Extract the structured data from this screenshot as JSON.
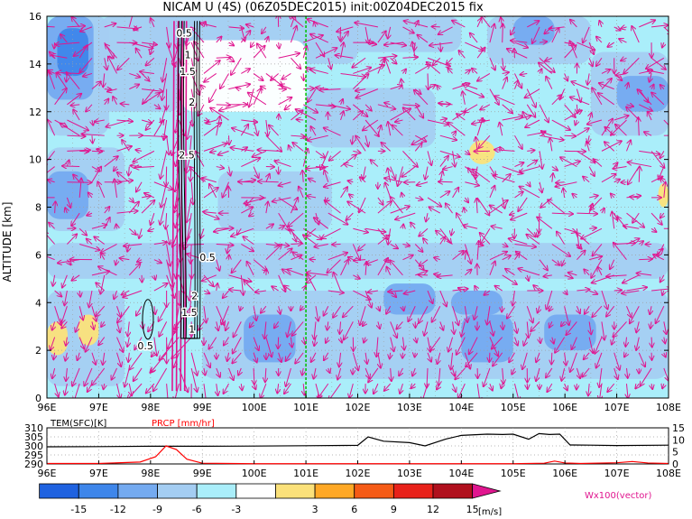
{
  "chart_data": [
    {
      "type": "heatmap",
      "title": "NICAM  U  (4S)  (06Z05DEC2015)  init:00Z04DEC2015  fix",
      "ylabel": "ALTITUDE  [km]",
      "xlabel": "",
      "x_ticks": [
        "96E",
        "97E",
        "98E",
        "99E",
        "100E",
        "101E",
        "102E",
        "103E",
        "104E",
        "105E",
        "106E",
        "107E",
        "108E"
      ],
      "x_range": [
        96,
        108
      ],
      "y_ticks": [
        0,
        2,
        4,
        6,
        8,
        10,
        12,
        14,
        16
      ],
      "y_range": [
        0,
        16
      ],
      "grid": true,
      "marker_line_lon": 101,
      "contour_labels": [
        {
          "text": "0.5",
          "lon": 98.65,
          "alt": 15.3
        },
        {
          "text": "1",
          "lon": 98.72,
          "alt": 14.4
        },
        {
          "text": "1.5",
          "lon": 98.72,
          "alt": 13.7
        },
        {
          "text": "2",
          "lon": 98.8,
          "alt": 12.4
        },
        {
          "text": "2.5",
          "lon": 98.7,
          "alt": 10.2
        },
        {
          "text": "0.5",
          "lon": 99.1,
          "alt": 5.9
        },
        {
          "text": "2",
          "lon": 98.85,
          "alt": 4.3
        },
        {
          "text": "1.5",
          "lon": 98.75,
          "alt": 3.6
        },
        {
          "text": "1",
          "lon": 98.8,
          "alt": 2.9
        },
        {
          "text": "0.5",
          "lon": 97.9,
          "alt": 2.2
        }
      ],
      "shade_regions": [
        {
          "level": -3,
          "lon": [
            96.0,
            97.2
          ],
          "alt": [
            11.0,
            16.0
          ]
        },
        {
          "level": -6,
          "lon": [
            96.0,
            96.9
          ],
          "alt": [
            12.5,
            16.0
          ]
        },
        {
          "level": -9,
          "lon": [
            96.2,
            96.8
          ],
          "alt": [
            13.5,
            15.5
          ]
        },
        {
          "level": -3,
          "lon": [
            96.0,
            97.5
          ],
          "alt": [
            7.0,
            10.5
          ]
        },
        {
          "level": -6,
          "lon": [
            96.0,
            96.8
          ],
          "alt": [
            7.5,
            9.5
          ]
        },
        {
          "level": -3,
          "lon": [
            97.0,
            98.6
          ],
          "alt": [
            12.0,
            16.0
          ]
        },
        {
          "level": -3,
          "lon": [
            98.0,
            102.0
          ],
          "alt": [
            14.0,
            16.0
          ]
        },
        {
          "level": 3,
          "lon": [
            98.6,
            101.0
          ],
          "alt": [
            12.0,
            15.0
          ]
        },
        {
          "level": -3,
          "lon": [
            101.0,
            104.0
          ],
          "alt": [
            14.5,
            16.0
          ]
        },
        {
          "level": -3,
          "lon": [
            104.5,
            106.5
          ],
          "alt": [
            14.0,
            16.0
          ]
        },
        {
          "level": -6,
          "lon": [
            105.0,
            105.8
          ],
          "alt": [
            14.8,
            16.0
          ]
        },
        {
          "level": -3,
          "lon": [
            106.5,
            108.0
          ],
          "alt": [
            11.0,
            14.5
          ]
        },
        {
          "level": -6,
          "lon": [
            107.0,
            108.0
          ],
          "alt": [
            12.0,
            13.5
          ]
        },
        {
          "level": -3,
          "lon": [
            99.3,
            101.5
          ],
          "alt": [
            7.0,
            9.5
          ]
        },
        {
          "level": -3,
          "lon": [
            101.0,
            103.5
          ],
          "alt": [
            10.5,
            13.0
          ]
        },
        {
          "level": -3,
          "lon": [
            96.0,
            108.0
          ],
          "alt": [
            5.0,
            6.5
          ]
        },
        {
          "level": -3,
          "lon": [
            99.0,
            108.0
          ],
          "alt": [
            0.8,
            4.5
          ]
        },
        {
          "level": -6,
          "lon": [
            99.8,
            100.8
          ],
          "alt": [
            1.5,
            3.5
          ]
        },
        {
          "level": -6,
          "lon": [
            102.5,
            103.5
          ],
          "alt": [
            3.5,
            4.8
          ]
        },
        {
          "level": -6,
          "lon": [
            103.8,
            104.8
          ],
          "alt": [
            3.5,
            4.5
          ]
        },
        {
          "level": -6,
          "lon": [
            104.0,
            105.0
          ],
          "alt": [
            1.5,
            3.5
          ]
        },
        {
          "level": -6,
          "lon": [
            105.6,
            106.6
          ],
          "alt": [
            2.0,
            3.5
          ]
        },
        {
          "level": -3,
          "lon": [
            96.0,
            97.5
          ],
          "alt": [
            0.5,
            4.5
          ]
        },
        {
          "level": 3,
          "lon": [
            104.15,
            104.65
          ],
          "alt": [
            9.8,
            10.8
          ]
        },
        {
          "level": 3,
          "lon": [
            96.0,
            96.4
          ],
          "alt": [
            1.8,
            3.2
          ]
        },
        {
          "level": 3,
          "lon": [
            96.6,
            97.0
          ],
          "alt": [
            2.2,
            3.5
          ]
        },
        {
          "level": 3,
          "lon": [
            107.8,
            108.0
          ],
          "alt": [
            8.0,
            9.0
          ]
        }
      ]
    },
    {
      "type": "line",
      "label_tem": "TEM(SFC)[K]",
      "label_prcp": "PRCP [mm/hr]",
      "x_ticks": [
        "96E",
        "97E",
        "98E",
        "99E",
        "100E",
        "101E",
        "102E",
        "103E",
        "104E",
        "105E",
        "106E",
        "107E",
        "108E"
      ],
      "y_left_ticks": [
        "310",
        "305",
        "300",
        "295",
        "290"
      ],
      "y_left_range": [
        290,
        310
      ],
      "y_right_ticks": [
        "15",
        "10",
        "5",
        "0"
      ],
      "y_right_range": [
        0,
        15
      ],
      "series": [
        {
          "name": "TEM(SFC)[K]",
          "color": "#000000",
          "x": [
            96,
            97,
            98,
            99,
            100,
            101,
            102,
            102.2,
            102.5,
            103,
            103.3,
            103.7,
            104,
            104.5,
            104.8,
            105,
            105.3,
            105.5,
            105.7,
            105.9,
            106.1,
            106.5,
            107,
            108
          ],
          "y": [
            299.5,
            299.6,
            299.8,
            299.8,
            299.9,
            300.1,
            300.3,
            305.0,
            302.6,
            301.8,
            300.0,
            303.8,
            305.8,
            306.5,
            306.3,
            306.5,
            303.7,
            306.8,
            306.3,
            306.5,
            300.5,
            300.4,
            300.2,
            300.4
          ]
        },
        {
          "name": "PRCP [mm/hr]",
          "color": "#ff0000",
          "x": [
            96,
            97,
            97.8,
            98.1,
            98.3,
            98.5,
            98.7,
            99,
            100,
            101,
            102,
            103,
            104,
            105,
            105.6,
            105.8,
            106,
            106.3,
            107,
            107.3,
            107.6,
            108
          ],
          "y": [
            0.2,
            0.2,
            0.8,
            3.0,
            7.5,
            6.0,
            2.0,
            0.3,
            0.1,
            0.1,
            0.1,
            0.1,
            0.1,
            0.1,
            0.3,
            1.2,
            0.4,
            0.2,
            0.5,
            1.0,
            0.4,
            0.2
          ]
        }
      ]
    }
  ],
  "colorbar": {
    "unit": "[m/s]",
    "labels": [
      "-15",
      "-12",
      "-9",
      "-6",
      "-3",
      "3",
      "6",
      "9",
      "12",
      "15"
    ],
    "colors": [
      "#7b20e8",
      "#1f62e0",
      "#3e86ea",
      "#74aaf0",
      "#a4cdf2",
      "#aaeefa",
      "#ffffff",
      "#fbe17a",
      "#fea826",
      "#f55b16",
      "#e8211a",
      "#b0101d",
      "#e0168f"
    ]
  },
  "vector_legend": "Wx100(vector)",
  "colors": {
    "vector": "#e0168f",
    "marker_line": "#00c000",
    "grid": "#a0a0a0"
  }
}
